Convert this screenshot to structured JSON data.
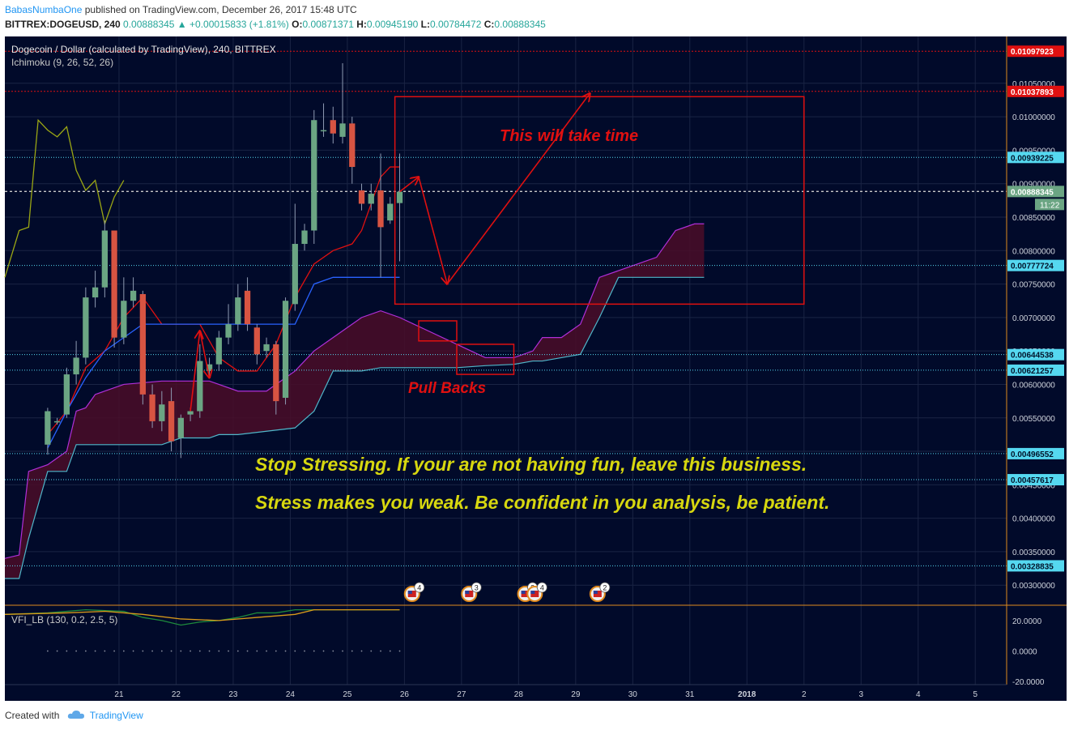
{
  "header": {
    "author": "BabasNumbaOne",
    "published_text": "published on TradingView.com, December 26, 2017 15:48 UTC",
    "symbol_line": "BITTREX:DOGEUSD, 240",
    "last": "0.00888345",
    "change": "+0.00015833 (+1.81%)",
    "o_label": "O:",
    "o_value": "0.00871371",
    "h_label": "H:",
    "h_value": "0.00945190",
    "l_label": "L:",
    "l_value": "0.00784472",
    "c_label": "C:",
    "c_value": "0.00888345"
  },
  "footer": {
    "created_with": "Created with",
    "brand": "TradingView"
  },
  "colors": {
    "background": "#010a2a",
    "up": "#6ba583",
    "down": "#d75442",
    "conversion": "#e01010",
    "base": "#2962ff",
    "lagging": "#9aa614",
    "cloud": "#4a0d28",
    "annotation": "#e01010",
    "text_yellow": "#d7d70f",
    "level_line": "#55d8f0",
    "resistance": "#e01010"
  },
  "chart_data": {
    "type": "candlestick",
    "title": "Dogecoin / Dollar (calculated by TradingView), 240, BITTREX",
    "indicator": "Ichimoku (9, 26, 52, 26)",
    "ylim": [
      0.0027,
      0.0112
    ],
    "y_ticks": [
      "0.00300000",
      "0.00350000",
      "0.00400000",
      "0.00450000",
      "0.00500000",
      "0.00550000",
      "0.00600000",
      "0.00650000",
      "0.00700000",
      "0.00750000",
      "0.00800000",
      "0.00850000",
      "0.00900000",
      "0.00950000",
      "0.01000000",
      "0.01050000"
    ],
    "x_ticks": [
      {
        "label": "21",
        "t": 7.5
      },
      {
        "label": "22",
        "t": 13.5
      },
      {
        "label": "23",
        "t": 19.5
      },
      {
        "label": "24",
        "t": 25.5
      },
      {
        "label": "25",
        "t": 31.5
      },
      {
        "label": "26",
        "t": 37.5
      },
      {
        "label": "27",
        "t": 43.5
      },
      {
        "label": "28",
        "t": 49.5
      },
      {
        "label": "29",
        "t": 55.5
      },
      {
        "label": "30",
        "t": 61.5
      },
      {
        "label": "31",
        "t": 67.5
      },
      {
        "label": "2018",
        "t": 73.5
      },
      {
        "label": "2",
        "t": 79.5
      },
      {
        "label": "3",
        "t": 85.5
      },
      {
        "label": "4",
        "t": 91.5
      },
      {
        "label": "5",
        "t": 97.5
      }
    ],
    "t_range": [
      -4.5,
      100.8
    ],
    "candles": [
      [
        0,
        0.0051,
        0.0056,
        0.00495,
        0.00565
      ],
      [
        1,
        0.00545,
        0.00545,
        0.0054,
        0.0055
      ],
      [
        2,
        0.00555,
        0.00615,
        0.0055,
        0.00625
      ],
      [
        3,
        0.00615,
        0.0064,
        0.006,
        0.00665
      ],
      [
        4,
        0.0064,
        0.0073,
        0.0063,
        0.00745
      ],
      [
        5,
        0.0073,
        0.00745,
        0.00715,
        0.0077
      ],
      [
        6,
        0.00745,
        0.0083,
        0.0073,
        0.00845
      ],
      [
        7,
        0.0083,
        0.0067,
        0.00655,
        0.0083
      ],
      [
        8,
        0.0067,
        0.00725,
        0.0066,
        0.0076
      ],
      [
        9,
        0.00725,
        0.0074,
        0.00715,
        0.0076
      ],
      [
        10,
        0.00735,
        0.00585,
        0.0057,
        0.0074
      ],
      [
        11,
        0.00585,
        0.00545,
        0.00535,
        0.006
      ],
      [
        12,
        0.00545,
        0.0057,
        0.0053,
        0.0059
      ],
      [
        13,
        0.00575,
        0.00515,
        0.005,
        0.00595
      ],
      [
        14,
        0.0052,
        0.0055,
        0.0049,
        0.00555
      ],
      [
        15,
        0.00555,
        0.0056,
        0.00545,
        0.00565
      ],
      [
        16,
        0.0056,
        0.00635,
        0.0055,
        0.0066
      ],
      [
        17,
        0.0062,
        0.0063,
        0.0061,
        0.0064
      ],
      [
        18,
        0.0063,
        0.0067,
        0.0062,
        0.0068
      ],
      [
        19,
        0.0067,
        0.0069,
        0.0066,
        0.0072
      ],
      [
        20,
        0.0069,
        0.0073,
        0.0068,
        0.0075
      ],
      [
        21,
        0.0074,
        0.0069,
        0.0068,
        0.0076
      ],
      [
        22,
        0.00685,
        0.00645,
        0.0063,
        0.0069
      ],
      [
        23,
        0.0065,
        0.0066,
        0.0064,
        0.0067
      ],
      [
        24,
        0.0066,
        0.00575,
        0.00555,
        0.00665
      ],
      [
        25,
        0.0058,
        0.00725,
        0.0057,
        0.0073
      ],
      [
        26,
        0.0072,
        0.0081,
        0.0071,
        0.0087
      ],
      [
        27,
        0.0081,
        0.0083,
        0.008,
        0.0084
      ],
      [
        28,
        0.0083,
        0.00995,
        0.0081,
        0.0101
      ],
      [
        29,
        0.0098,
        0.0098,
        0.0097,
        0.0102
      ],
      [
        30,
        0.00995,
        0.00975,
        0.0096,
        0.01015
      ],
      [
        31,
        0.0097,
        0.0099,
        0.0096,
        0.0108
      ],
      [
        32,
        0.0099,
        0.00925,
        0.009,
        0.01
      ],
      [
        33,
        0.0089,
        0.0087,
        0.0086,
        0.009
      ],
      [
        34,
        0.0087,
        0.00885,
        0.0086,
        0.009
      ],
      [
        35,
        0.0089,
        0.00835,
        0.0076,
        0.00945
      ],
      [
        36,
        0.00845,
        0.0087,
        0.0084,
        0.0088
      ],
      [
        37,
        0.00871,
        0.00888,
        0.00784,
        0.00945
      ]
    ],
    "series": [
      {
        "kind": "line",
        "key": "conversion",
        "points": [
          [
            0,
            0.00525
          ],
          [
            2,
            0.0056
          ],
          [
            4,
            0.00625
          ],
          [
            6,
            0.0065
          ],
          [
            8,
            0.007
          ],
          [
            10,
            0.0073
          ],
          [
            12,
            0.0069
          ],
          [
            14,
            0.0069
          ],
          [
            16,
            0.0069
          ],
          [
            18,
            0.0064
          ],
          [
            20,
            0.0062
          ],
          [
            22,
            0.0062
          ],
          [
            24,
            0.0066
          ],
          [
            26,
            0.0073
          ],
          [
            28,
            0.0078
          ],
          [
            30,
            0.008
          ],
          [
            32,
            0.0081
          ],
          [
            33,
            0.0083
          ],
          [
            34,
            0.0087
          ],
          [
            35,
            0.0091
          ],
          [
            36,
            0.00925
          ],
          [
            37,
            0.00925
          ]
        ]
      },
      {
        "kind": "line",
        "key": "base",
        "points": [
          [
            0,
            0.00505
          ],
          [
            2,
            0.0056
          ],
          [
            4,
            0.0061
          ],
          [
            6,
            0.0065
          ],
          [
            8,
            0.0067
          ],
          [
            10,
            0.0069
          ],
          [
            12,
            0.0069
          ],
          [
            14,
            0.0069
          ],
          [
            16,
            0.0069
          ],
          [
            18,
            0.0069
          ],
          [
            20,
            0.0069
          ],
          [
            22,
            0.0069
          ],
          [
            24,
            0.0069
          ],
          [
            26,
            0.0069
          ],
          [
            28,
            0.0075
          ],
          [
            30,
            0.0076
          ],
          [
            37,
            0.0076
          ]
        ]
      },
      {
        "kind": "line",
        "key": "lagging",
        "points": [
          [
            -4.5,
            0.0076
          ],
          [
            -3,
            0.0083
          ],
          [
            -2,
            0.00835
          ],
          [
            -1,
            0.00995
          ],
          [
            0,
            0.0098
          ],
          [
            1,
            0.0097
          ],
          [
            2,
            0.00985
          ],
          [
            3,
            0.0092
          ],
          [
            4,
            0.0089
          ],
          [
            5,
            0.00905
          ],
          [
            6,
            0.0084
          ],
          [
            7,
            0.0088
          ],
          [
            8,
            0.00905
          ]
        ]
      }
    ],
    "cloud": [
      [
        -4.5,
        0.0034,
        0.0031
      ],
      [
        -3,
        0.00345,
        0.0031
      ],
      [
        -2,
        0.0047,
        0.0037
      ],
      [
        0,
        0.0048,
        0.0047
      ],
      [
        2,
        0.005,
        0.0047
      ],
      [
        3,
        0.0056,
        0.0051
      ],
      [
        4,
        0.00565,
        0.0051
      ],
      [
        5,
        0.00585,
        0.0051
      ],
      [
        8,
        0.006,
        0.0051
      ],
      [
        12,
        0.00605,
        0.0051
      ],
      [
        14,
        0.00605,
        0.0052
      ],
      [
        17,
        0.00605,
        0.0052
      ],
      [
        18,
        0.006,
        0.00525
      ],
      [
        20,
        0.0059,
        0.00525
      ],
      [
        23,
        0.0059,
        0.0053
      ],
      [
        26,
        0.0062,
        0.00535
      ],
      [
        28,
        0.0065,
        0.0056
      ],
      [
        30,
        0.0067,
        0.0062
      ],
      [
        33,
        0.007,
        0.0062
      ],
      [
        35,
        0.0071,
        0.00625
      ],
      [
        37,
        0.007,
        0.00625
      ],
      [
        40,
        0.0068,
        0.00625
      ],
      [
        43,
        0.0066,
        0.00625
      ],
      [
        46,
        0.0064,
        0.00628
      ],
      [
        49,
        0.0064,
        0.0063
      ],
      [
        51,
        0.0065,
        0.00635
      ],
      [
        52,
        0.0067,
        0.00635
      ],
      [
        54,
        0.0067,
        0.0064
      ],
      [
        56,
        0.0069,
        0.00645
      ],
      [
        58,
        0.0076,
        0.007
      ],
      [
        60,
        0.0077,
        0.0076
      ],
      [
        62,
        0.0078,
        0.0076
      ],
      [
        64,
        0.0079,
        0.0076
      ],
      [
        66,
        0.0083,
        0.0076
      ],
      [
        68,
        0.0084,
        0.0076
      ],
      [
        69,
        0.0084,
        0.0076
      ]
    ],
    "levels": [
      {
        "value": 0.01097923,
        "label": "0.01097923",
        "type": "resistance"
      },
      {
        "value": 0.01037893,
        "label": "0.01037893",
        "type": "resistance"
      },
      {
        "value": 0.00939225,
        "label": "0.00939225",
        "type": "support"
      },
      {
        "value": 0.00777724,
        "label": "0.00777724",
        "type": "support"
      },
      {
        "value": 0.00644538,
        "label": "0.00644538",
        "type": "support"
      },
      {
        "value": 0.00621257,
        "label": "0.00621257",
        "type": "support"
      },
      {
        "value": 0.00496552,
        "label": "0.00496552",
        "type": "support"
      },
      {
        "value": 0.00457617,
        "label": "0.00457617",
        "type": "support"
      },
      {
        "value": 0.00328835,
        "label": "0.00328835",
        "type": "support"
      }
    ],
    "current_price": {
      "value": 0.00888345,
      "label": "0.00888345",
      "countdown": "11:22"
    },
    "annotations": {
      "box_main_label": "This will take time",
      "pullback_label": "Pull Backs",
      "message_line1": "Stop Stressing. If your are not having fun, leave this business.",
      "message_line2": "Stress makes you weak. Be confident in you analysis, be patient.",
      "path": [
        [
          37,
          0.00888
        ],
        [
          39,
          0.0091
        ],
        [
          42,
          0.0075
        ],
        [
          57,
          0.01035
        ]
      ],
      "box_main": [
        36.5,
        0.0072,
        79.5,
        0.0103
      ],
      "box_pb1": [
        39,
        0.00665,
        43,
        0.00695
      ],
      "box_pb2": [
        43,
        0.00615,
        49,
        0.0066
      ],
      "arrow_small": [
        [
          15,
          0.0056
        ],
        [
          16,
          0.0068
        ],
        [
          17,
          0.0061
        ]
      ],
      "events": [
        {
          "t": 38.3,
          "count": "4"
        },
        {
          "t": 44.3,
          "count": "3"
        },
        {
          "t": 50.2,
          "count": "3"
        },
        {
          "t": 51.2,
          "count": "4"
        },
        {
          "t": 57.8,
          "count": "2"
        }
      ]
    },
    "subpanel": {
      "label": "VFI_LB (130, 0.2, 2.5, 5)",
      "y_ticks": [
        "20.0000",
        "0.0000",
        "-20.0000"
      ],
      "ylim": [
        -22,
        30
      ],
      "series": [
        {
          "key": "vfi",
          "color": "#1e8a3c",
          "points": [
            [
              -4.5,
              24
            ],
            [
              0,
              25
            ],
            [
              4,
              27
            ],
            [
              8,
              26
            ],
            [
              10,
              22
            ],
            [
              12,
              20
            ],
            [
              14,
              17
            ],
            [
              16,
              19
            ],
            [
              18,
              20
            ],
            [
              20,
              22
            ],
            [
              22,
              25
            ],
            [
              24,
              25
            ],
            [
              26,
              27
            ],
            [
              28,
              27
            ],
            [
              37,
              27
            ]
          ]
        },
        {
          "key": "signal",
          "color": "#d99a1a",
          "points": [
            [
              -4.5,
              24
            ],
            [
              2,
              25
            ],
            [
              6,
              26
            ],
            [
              10,
              24
            ],
            [
              14,
              21
            ],
            [
              18,
              20
            ],
            [
              22,
              22
            ],
            [
              26,
              24
            ],
            [
              28,
              27
            ],
            [
              37,
              27
            ]
          ]
        }
      ],
      "dots_value": 0,
      "dots_t_range": [
        0,
        37
      ]
    }
  }
}
